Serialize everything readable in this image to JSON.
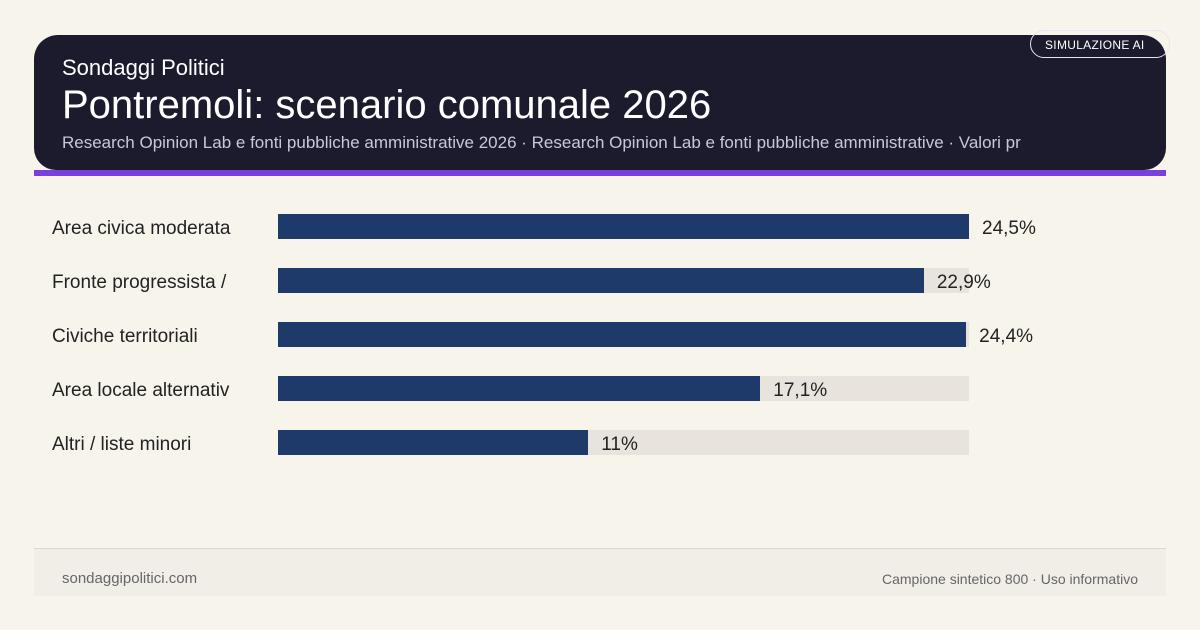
{
  "header": {
    "kicker": "Sondaggi Politici",
    "title": "Pontremoli: scenario comunale 2026",
    "subtitle": "Research Opinion Lab e fonti pubbliche amministrative 2026 · Research Opinion Lab e fonti pubbliche amministrative · Valori pr",
    "badge": "SIMULAZIONE AI"
  },
  "colors": {
    "bar": "#1e3a6b",
    "track": "#e8e3dc",
    "accent": "#7b3fe0",
    "header": "#1c1b2e"
  },
  "chart_data": {
    "type": "bar",
    "orientation": "horizontal",
    "categories": [
      "Area civica moderata",
      "Fronte progressista /",
      "Civiche territoriali",
      "Area locale alternativ",
      "Altri / liste minori"
    ],
    "values": [
      24.5,
      22.9,
      24.4,
      17.1,
      11
    ],
    "value_labels": [
      "24,5%",
      "22,9%",
      "24,4%",
      "17,1%",
      "11%"
    ],
    "xlim": [
      0,
      24.5
    ],
    "unit": "%"
  },
  "footer": {
    "left": "sondaggipolitici.com",
    "right": "Campione sintetico 800 · Uso informativo"
  }
}
